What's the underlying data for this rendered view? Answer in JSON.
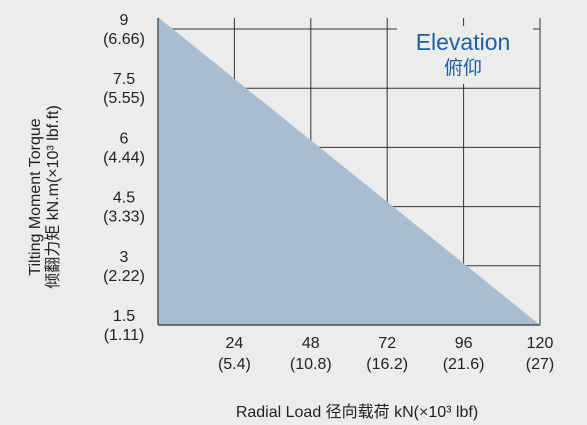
{
  "chart_data": {
    "type": "area",
    "title": "Elevation",
    "title_cn": "俯仰",
    "xlabel": "Radial Load 径向载荷 kN(×10³ lbf)",
    "ylabel_line1": "Tilting Moment Torque",
    "ylabel_line2": "倾翻力矩 kN.m(×10³ lbf.ft)",
    "x_ticks": [
      {
        "value": 24,
        "label": "24",
        "sub": "(5.4)"
      },
      {
        "value": 48,
        "label": "48",
        "sub": "(10.8)"
      },
      {
        "value": 72,
        "label": "72",
        "sub": "(16.2)"
      },
      {
        "value": 96,
        "label": "96",
        "sub": "(21.6)"
      },
      {
        "value": 120,
        "label": "120",
        "sub": "(27)"
      }
    ],
    "y_ticks": [
      {
        "value": 1.5,
        "label": "1.5",
        "sub": "(1.11)"
      },
      {
        "value": 3,
        "label": "3",
        "sub": "(2.22)"
      },
      {
        "value": 4.5,
        "label": "4.5",
        "sub": "(3.33)"
      },
      {
        "value": 6,
        "label": "6",
        "sub": "(4.44)"
      },
      {
        "value": 7.5,
        "label": "7.5",
        "sub": "(5.55)"
      },
      {
        "value": 9,
        "label": "9",
        "sub": "(6.66)"
      }
    ],
    "xlim": [
      0,
      120
    ],
    "ylim": [
      1.5,
      9
    ],
    "series": [
      {
        "x": [
          0,
          120
        ],
        "y": [
          9.3,
          1.5
        ]
      }
    ],
    "grid": true,
    "colors": {
      "fill": "#a8bdd0",
      "grid": "#333333",
      "title": "#1f5fa6",
      "background": "#ebecec"
    }
  }
}
